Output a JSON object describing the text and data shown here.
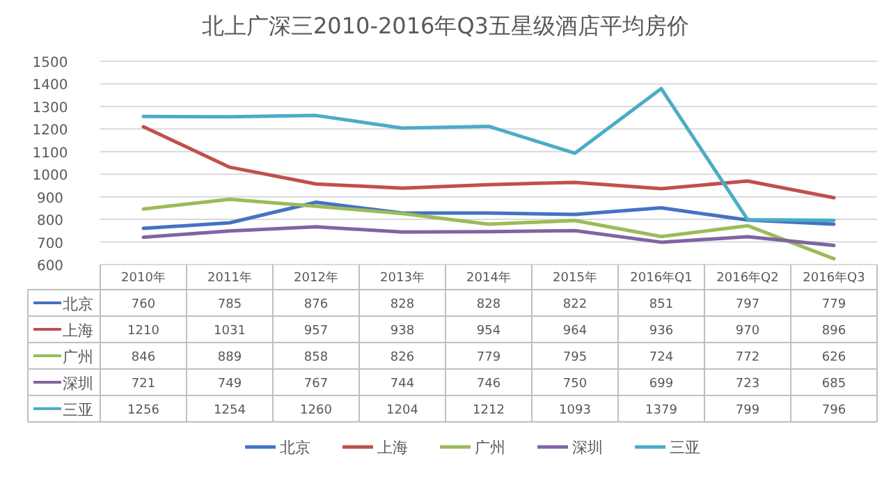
{
  "chart_data": {
    "type": "line",
    "title": "北上广深三2010-2016年Q3五星级酒店平均房价",
    "categories": [
      "2010年",
      "2011年",
      "2012年",
      "2013年",
      "2014年",
      "2015年",
      "2016年Q1",
      "2016年Q2",
      "2016年Q3"
    ],
    "series": [
      {
        "name": "北京",
        "color": "#4472c4",
        "values": [
          760,
          785,
          876,
          828,
          828,
          822,
          851,
          797,
          779
        ]
      },
      {
        "name": "上海",
        "color": "#c0504d",
        "values": [
          1210,
          1031,
          957,
          938,
          954,
          964,
          936,
          970,
          896
        ]
      },
      {
        "name": "广州",
        "color": "#9bbb59",
        "values": [
          846,
          889,
          858,
          826,
          779,
          795,
          724,
          772,
          626
        ]
      },
      {
        "name": "深圳",
        "color": "#8064a2",
        "values": [
          721,
          749,
          767,
          744,
          746,
          750,
          699,
          723,
          685
        ]
      },
      {
        "name": "三亚",
        "color": "#4bacc6",
        "values": [
          1256,
          1254,
          1260,
          1204,
          1212,
          1093,
          1379,
          799,
          796
        ]
      }
    ],
    "ylim": [
      600,
      1500
    ],
    "yticks": [
      600,
      700,
      800,
      900,
      1000,
      1100,
      1200,
      1300,
      1400,
      1500
    ],
    "grid": "y",
    "legend": "bottom",
    "data_labels": true,
    "marker": "none",
    "line_style": "solid"
  }
}
